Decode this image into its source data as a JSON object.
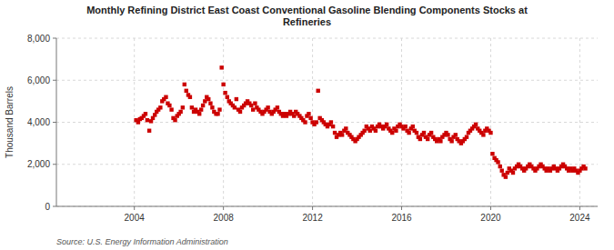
{
  "chart_data": {
    "type": "scatter",
    "title": "Monthly Refining District East Coast Conventional Gasoline Blending Components Stocks at\nRefineries",
    "ylabel": "Thousand Barrels",
    "source": "Source: U.S. Energy Information Administration",
    "color": "#cc0000",
    "marker": "square",
    "grid": true,
    "xlim": [
      2000.5,
      2024.8
    ],
    "xticks": [
      2004,
      2008,
      2012,
      2016,
      2020,
      2024
    ],
    "ylim": [
      0,
      8000
    ],
    "yticks": [
      0,
      {
        "value": 2000,
        "label": "2,000"
      },
      {
        "value": 4000,
        "label": "4,000"
      },
      {
        "value": 6000,
        "label": "6,000"
      },
      {
        "value": 8000,
        "label": "8,000"
      }
    ],
    "x": [
      2004.08,
      2004.17,
      2004.25,
      2004.33,
      2004.42,
      2004.5,
      2004.58,
      2004.67,
      2004.75,
      2004.83,
      2004.92,
      2005.0,
      2005.08,
      2005.17,
      2005.25,
      2005.33,
      2005.42,
      2005.5,
      2005.58,
      2005.67,
      2005.75,
      2005.83,
      2005.92,
      2006.0,
      2006.08,
      2006.17,
      2006.25,
      2006.33,
      2006.42,
      2006.5,
      2006.58,
      2006.67,
      2006.75,
      2006.83,
      2006.92,
      2007.0,
      2007.08,
      2007.17,
      2007.25,
      2007.33,
      2007.42,
      2007.5,
      2007.58,
      2007.67,
      2007.75,
      2007.83,
      2007.92,
      2008.0,
      2008.08,
      2008.17,
      2008.25,
      2008.33,
      2008.42,
      2008.5,
      2008.58,
      2008.67,
      2008.75,
      2008.83,
      2008.92,
      2009.0,
      2009.08,
      2009.17,
      2009.25,
      2009.33,
      2009.42,
      2009.5,
      2009.58,
      2009.67,
      2009.75,
      2009.83,
      2009.92,
      2010.0,
      2010.08,
      2010.17,
      2010.25,
      2010.33,
      2010.42,
      2010.5,
      2010.58,
      2010.67,
      2010.75,
      2010.83,
      2010.92,
      2011.0,
      2011.08,
      2011.17,
      2011.25,
      2011.33,
      2011.42,
      2011.5,
      2011.58,
      2011.67,
      2011.75,
      2011.83,
      2011.92,
      2012.0,
      2012.08,
      2012.17,
      2012.25,
      2012.33,
      2012.42,
      2012.5,
      2012.58,
      2012.67,
      2012.75,
      2012.83,
      2012.92,
      2013.0,
      2013.08,
      2013.17,
      2013.25,
      2013.33,
      2013.42,
      2013.5,
      2013.58,
      2013.67,
      2013.75,
      2013.83,
      2013.92,
      2014.0,
      2014.08,
      2014.17,
      2014.25,
      2014.33,
      2014.42,
      2014.5,
      2014.58,
      2014.67,
      2014.75,
      2014.83,
      2014.92,
      2015.0,
      2015.08,
      2015.17,
      2015.25,
      2015.33,
      2015.42,
      2015.5,
      2015.58,
      2015.67,
      2015.75,
      2015.83,
      2015.92,
      2016.0,
      2016.08,
      2016.17,
      2016.25,
      2016.33,
      2016.42,
      2016.5,
      2016.58,
      2016.67,
      2016.75,
      2016.83,
      2016.92,
      2017.0,
      2017.08,
      2017.17,
      2017.25,
      2017.33,
      2017.42,
      2017.5,
      2017.58,
      2017.67,
      2017.75,
      2017.83,
      2017.92,
      2018.0,
      2018.08,
      2018.17,
      2018.25,
      2018.33,
      2018.42,
      2018.5,
      2018.58,
      2018.67,
      2018.75,
      2018.83,
      2018.92,
      2019.0,
      2019.08,
      2019.17,
      2019.25,
      2019.33,
      2019.42,
      2019.5,
      2019.58,
      2019.67,
      2019.75,
      2019.83,
      2019.92,
      2020.0,
      2020.08,
      2020.17,
      2020.25,
      2020.33,
      2020.42,
      2020.5,
      2020.58,
      2020.67,
      2020.75,
      2020.83,
      2020.92,
      2021.0,
      2021.08,
      2021.17,
      2021.25,
      2021.33,
      2021.42,
      2021.5,
      2021.58,
      2021.67,
      2021.75,
      2021.83,
      2021.92,
      2022.0,
      2022.08,
      2022.17,
      2022.25,
      2022.33,
      2022.42,
      2022.5,
      2022.58,
      2022.67,
      2022.75,
      2022.83,
      2022.92,
      2023.0,
      2023.08,
      2023.17,
      2023.25,
      2023.33,
      2023.42,
      2023.5,
      2023.58,
      2023.67,
      2023.75,
      2023.83,
      2023.92,
      2024.0,
      2024.08,
      2024.17,
      2024.25
    ],
    "values": [
      4100,
      4000,
      4150,
      4200,
      4300,
      4400,
      4100,
      3600,
      4050,
      4200,
      4350,
      4500,
      4600,
      4700,
      5000,
      5100,
      5200,
      4900,
      4800,
      4600,
      4200,
      4100,
      4300,
      4400,
      4500,
      4700,
      5800,
      5500,
      5300,
      5200,
      4700,
      4500,
      4600,
      4500,
      4400,
      4600,
      4800,
      5000,
      5200,
      5100,
      4900,
      4700,
      4500,
      4400,
      4400,
      4600,
      6600,
      5800,
      5400,
      5200,
      5000,
      4900,
      4800,
      4700,
      5100,
      4600,
      4500,
      4700,
      4800,
      4900,
      5000,
      4900,
      4800,
      4600,
      4900,
      4700,
      4600,
      4500,
      4400,
      4500,
      4600,
      4700,
      4500,
      4400,
      4500,
      4600,
      4700,
      4500,
      4400,
      4300,
      4400,
      4300,
      4400,
      4500,
      4400,
      4300,
      4500,
      4400,
      4300,
      4200,
      4100,
      4000,
      4300,
      4400,
      4200,
      4000,
      3900,
      4000,
      5500,
      4200,
      4100,
      4000,
      3900,
      3800,
      3900,
      4000,
      3800,
      3500,
      3300,
      3400,
      3500,
      3400,
      3600,
      3700,
      3500,
      3400,
      3300,
      3200,
      3100,
      3200,
      3300,
      3400,
      3500,
      3600,
      3800,
      3700,
      3600,
      3800,
      3700,
      3600,
      3800,
      3900,
      3800,
      3700,
      3800,
      3900,
      3700,
      3600,
      3500,
      3700,
      3600,
      3800,
      3900,
      3800,
      3700,
      3800,
      3600,
      3500,
      3700,
      3800,
      3600,
      3500,
      3300,
      3200,
      3400,
      3500,
      3300,
      3200,
      3400,
      3500,
      3300,
      3200,
      3100,
      3200,
      3100,
      3300,
      3400,
      3500,
      3400,
      3200,
      3100,
      3300,
      3400,
      3200,
      3100,
      3000,
      3100,
      3200,
      3300,
      3500,
      3600,
      3700,
      3800,
      3900,
      3700,
      3600,
      3500,
      3400,
      3600,
      3700,
      3600,
      3500,
      2500,
      2300,
      2200,
      2100,
      1900,
      1700,
      1500,
      1400,
      1600,
      1800,
      1700,
      1600,
      1800,
      1900,
      2000,
      1900,
      1800,
      1700,
      1800,
      1900,
      2000,
      1900,
      1800,
      1700,
      1800,
      1900,
      2000,
      1900,
      1800,
      1700,
      1800,
      1700,
      1800,
      1900,
      1800,
      1700,
      1800,
      1900,
      2000,
      1900,
      1800,
      1700,
      1800,
      1700,
      1800,
      1700,
      1600,
      1700,
      1800,
      1900,
      1800
    ]
  }
}
